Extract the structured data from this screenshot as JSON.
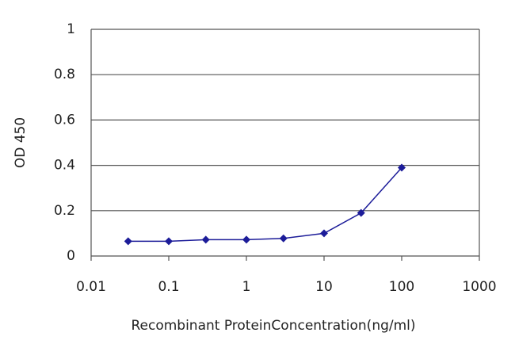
{
  "chart_data": {
    "type": "line",
    "x_label": "Recombinant ProteinConcentration(ng/ml)",
    "y_label": "OD 450",
    "x_log": true,
    "grid": true,
    "x": [
      0.03,
      0.1,
      0.3,
      1,
      3,
      10,
      30,
      100
    ],
    "series": [
      {
        "color": "#1c1c99",
        "values": [
          0.065,
          0.065,
          0.072,
          0.072,
          0.078,
          0.1,
          0.19,
          0.39
        ]
      }
    ],
    "xlim": [
      0.01,
      1000
    ],
    "xticks": [
      0.01,
      0.1,
      1,
      10,
      100,
      1000
    ],
    "ylim": [
      0,
      1
    ],
    "yticks": [
      0,
      0.2,
      0.4,
      0.6,
      0.8,
      1
    ]
  }
}
